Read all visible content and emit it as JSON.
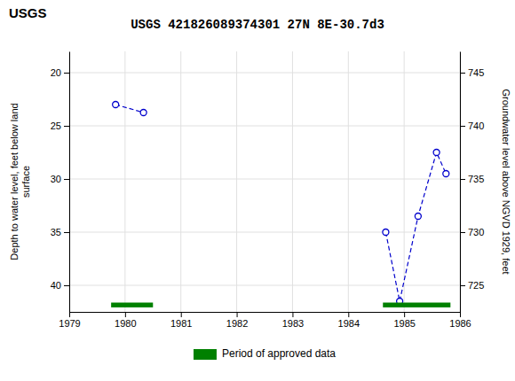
{
  "chart_data": {
    "type": "line",
    "title": "USGS 421826089374301 27N 8E-30.7d3",
    "annotations": [
      {
        "text": "USGS"
      }
    ],
    "ylabel": "Depth to water level, feet below land\nsurface",
    "y2label": "Groundwater level above NGVD 1929, feet",
    "xlim": [
      1979,
      1986
    ],
    "xticks": [
      1979,
      1980,
      1981,
      1982,
      1983,
      1984,
      1985,
      1986
    ],
    "ylim": [
      42.5,
      18
    ],
    "yticks": [
      20,
      25,
      30,
      35,
      40
    ],
    "y2lim": [
      722.5,
      747
    ],
    "y2ticks": [
      725,
      730,
      735,
      740,
      745
    ],
    "grid": true,
    "legend": "bottom",
    "series": [
      {
        "type": "line",
        "color": "#0000cc",
        "line_style": "dashed",
        "marker": "circle",
        "x": [
          1979.83,
          1980.33,
          null,
          1984.67,
          1984.92,
          1985.25,
          1985.58,
          1985.75
        ],
        "values": [
          23.0,
          23.75,
          null,
          35.0,
          41.5,
          33.5,
          27.5,
          29.5
        ]
      },
      {
        "type": "span",
        "name": "Period of approved data",
        "color": "#008000",
        "x_start": [
          1979.75,
          1984.62
        ],
        "x_end": [
          1980.5,
          1985.83
        ],
        "y": 41.85,
        "height": 0.45
      }
    ]
  }
}
